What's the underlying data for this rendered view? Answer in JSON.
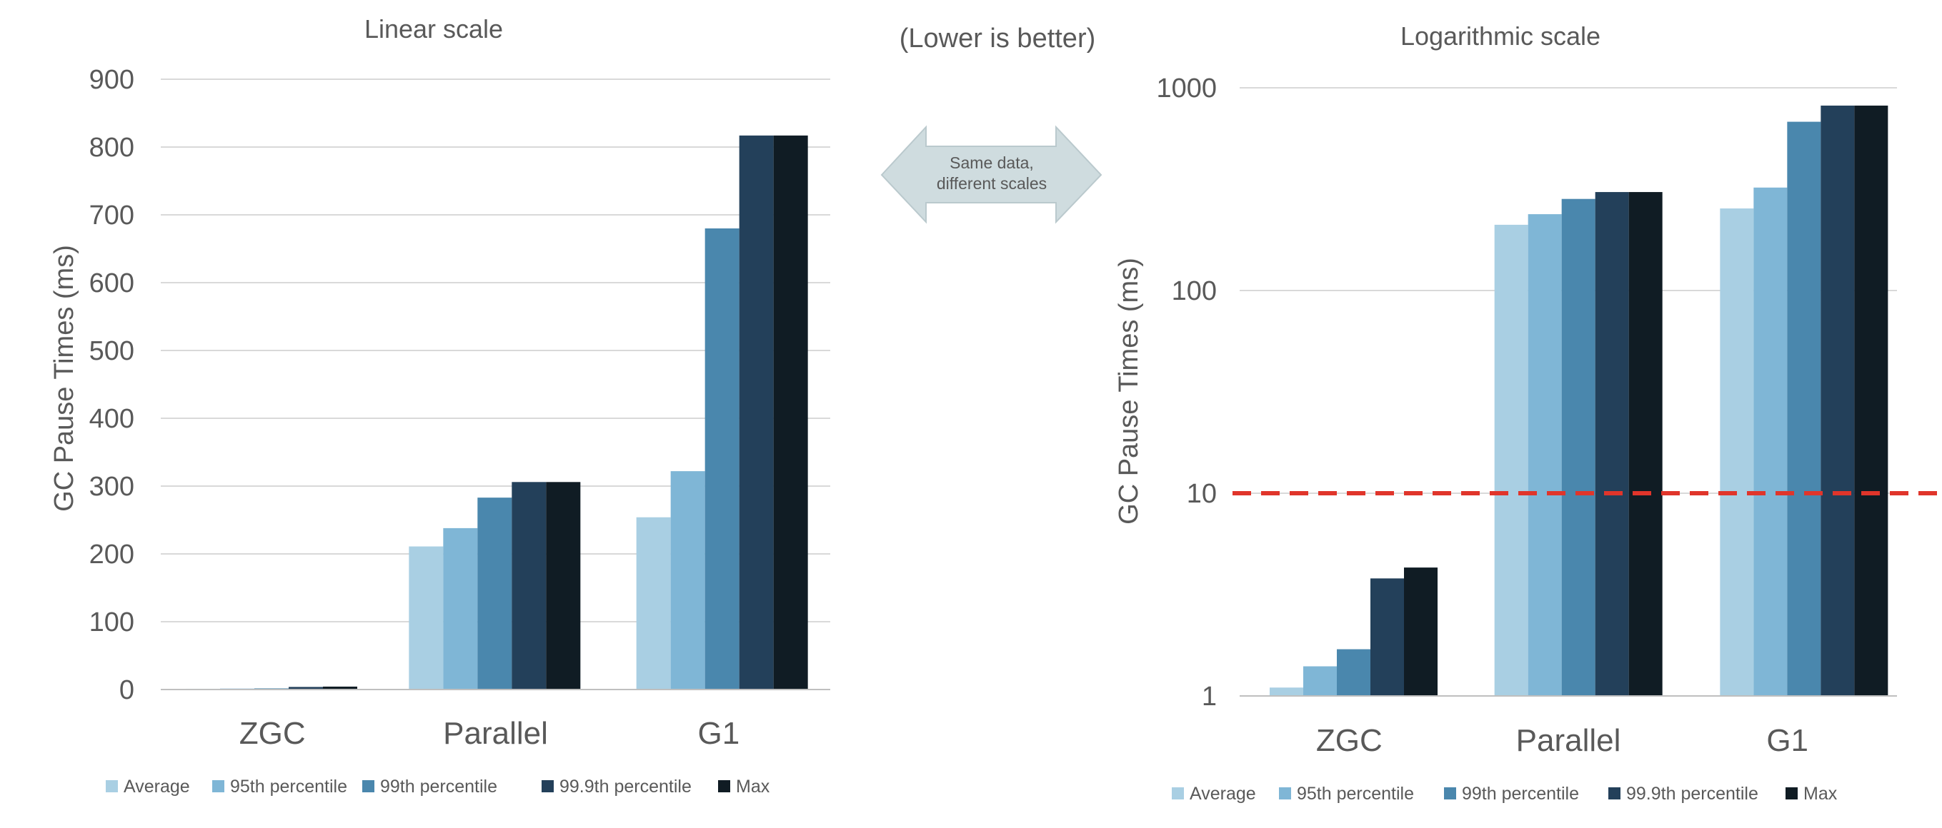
{
  "center_note": "(Lower is better)",
  "arrow_label": [
    "Same data,",
    "different scales"
  ],
  "colors": {
    "Average": "#a9cfe3",
    "95th percentile": "#7fb6d6",
    "99th percentile": "#4a87ad",
    "99.9th percentile": "#23405a",
    "Max": "#101c24",
    "threshold": "#e0352b",
    "grid": "#d9d9d9",
    "arrow": "#cfdcdf"
  },
  "chart_data": [
    {
      "type": "bar",
      "title": "Linear scale",
      "scale": "linear",
      "ylabel": "GC Pause Times (ms)",
      "xlabel": "",
      "ylim": [
        0,
        900
      ],
      "yticks": [
        "0",
        "100",
        "200",
        "300",
        "400",
        "500",
        "600",
        "700",
        "800",
        "900"
      ],
      "ytick_values": [
        0,
        100,
        200,
        300,
        400,
        500,
        600,
        700,
        800,
        900
      ],
      "categories": [
        "ZGC",
        "Parallel",
        "G1"
      ],
      "legend_position": "bottom",
      "grid": true,
      "series": [
        {
          "name": "Average",
          "values": [
            1.1,
            211,
            254
          ]
        },
        {
          "name": "95th percentile",
          "values": [
            1.4,
            238,
            322
          ]
        },
        {
          "name": "99th percentile",
          "values": [
            1.7,
            283,
            680
          ]
        },
        {
          "name": "99.9th percentile",
          "values": [
            3.8,
            306,
            817
          ]
        },
        {
          "name": "Max",
          "values": [
            4.3,
            306,
            817
          ]
        }
      ]
    },
    {
      "type": "bar",
      "title": "Logarithmic scale",
      "scale": "log",
      "ylabel": "GC Pause Times (ms)",
      "xlabel": "",
      "ylim": [
        1,
        1000
      ],
      "yticks": [
        "1",
        "10",
        "100",
        "1000"
      ],
      "ytick_values": [
        1,
        10,
        100,
        1000
      ],
      "categories": [
        "ZGC",
        "Parallel",
        "G1"
      ],
      "legend_position": "bottom",
      "grid": true,
      "reference_line": {
        "y": 10,
        "style": "dashed"
      },
      "series": [
        {
          "name": "Average",
          "values": [
            1.1,
            211,
            254
          ]
        },
        {
          "name": "95th percentile",
          "values": [
            1.4,
            238,
            322
          ]
        },
        {
          "name": "99th percentile",
          "values": [
            1.7,
            283,
            680
          ]
        },
        {
          "name": "99.9th percentile",
          "values": [
            3.8,
            306,
            817
          ]
        },
        {
          "name": "Max",
          "values": [
            4.3,
            306,
            817
          ]
        }
      ]
    }
  ]
}
